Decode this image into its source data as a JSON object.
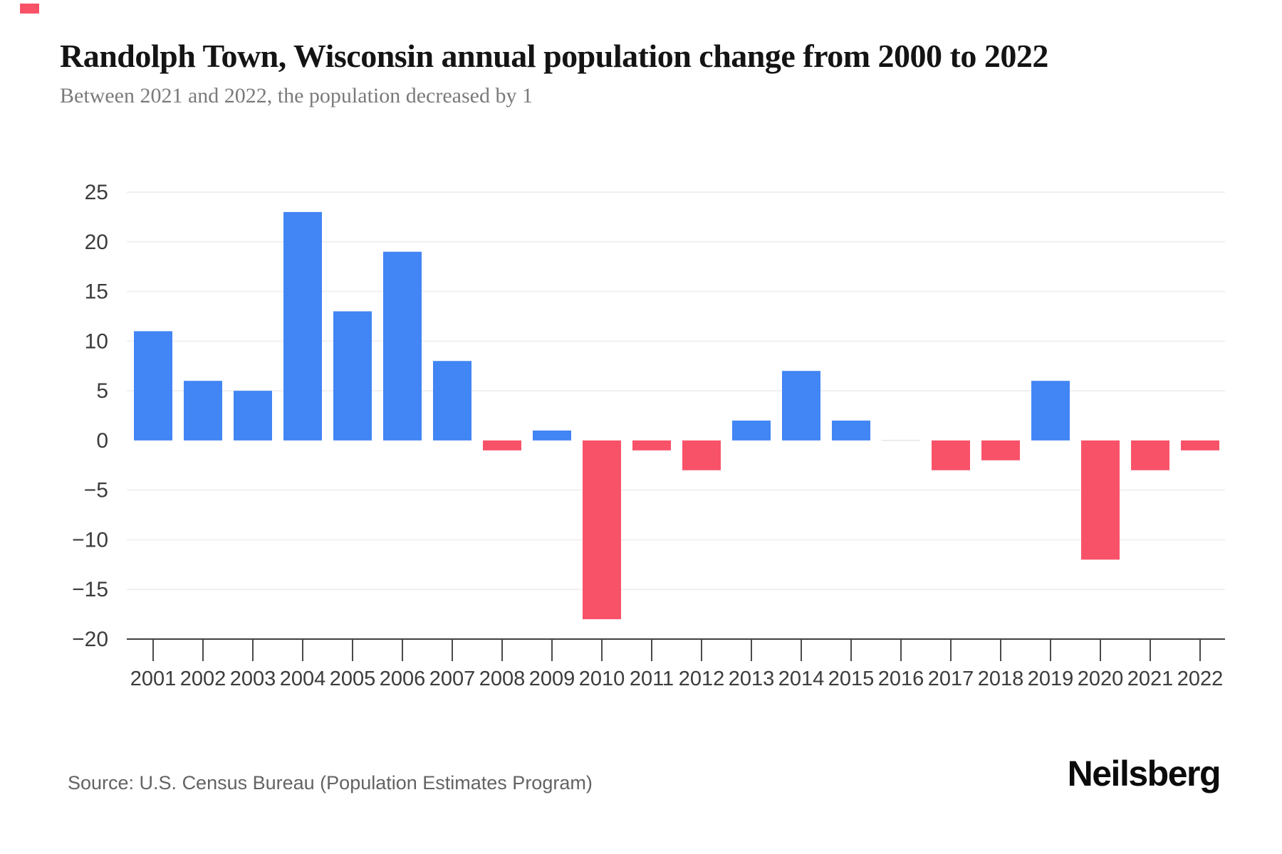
{
  "page": {
    "title": "Randolph Town, Wisconsin annual population change from 2000 to 2022",
    "subtitle": "Between 2021 and 2022, the population decreased by 1",
    "source": "Source: U.S. Census Bureau (Population Estimates Program)",
    "brand": "Neilsberg"
  },
  "colors": {
    "positive_bar": "#4285F4",
    "negative_bar": "#F85269",
    "zero_bar": "#EBEBEB",
    "gridline": "#F0F0F0",
    "axis": "#404040",
    "tick": "#4A4A4A",
    "tick_label": "#3C3C3C",
    "title": "#141414",
    "subtitle": "#7A7A7A",
    "source": "#636363",
    "brand": "#0B0B0B",
    "brand_mark": "#F85269",
    "background": "#FFFFFF"
  },
  "chart_data": {
    "type": "bar",
    "title": "Randolph Town, Wisconsin annual population change from 2000 to 2022",
    "xlabel": "",
    "ylabel": "",
    "categories": [
      "2001",
      "2002",
      "2003",
      "2004",
      "2005",
      "2006",
      "2007",
      "2008",
      "2009",
      "2010",
      "2011",
      "2012",
      "2013",
      "2014",
      "2015",
      "2016",
      "2017",
      "2018",
      "2019",
      "2020",
      "2021",
      "2022"
    ],
    "values": [
      11,
      6,
      5,
      23,
      13,
      19,
      8,
      -1,
      1,
      -18,
      -1,
      -3,
      2,
      7,
      2,
      0,
      -3,
      -2,
      6,
      -12,
      -3,
      -1
    ],
    "ylim": [
      -20,
      25
    ],
    "yticks": [
      25,
      20,
      15,
      10,
      5,
      0,
      -5,
      -10,
      -15,
      -20
    ],
    "ytick_step": 5,
    "grid": true,
    "legend": false,
    "positive_color": "#4285F4",
    "negative_color": "#F85269"
  }
}
